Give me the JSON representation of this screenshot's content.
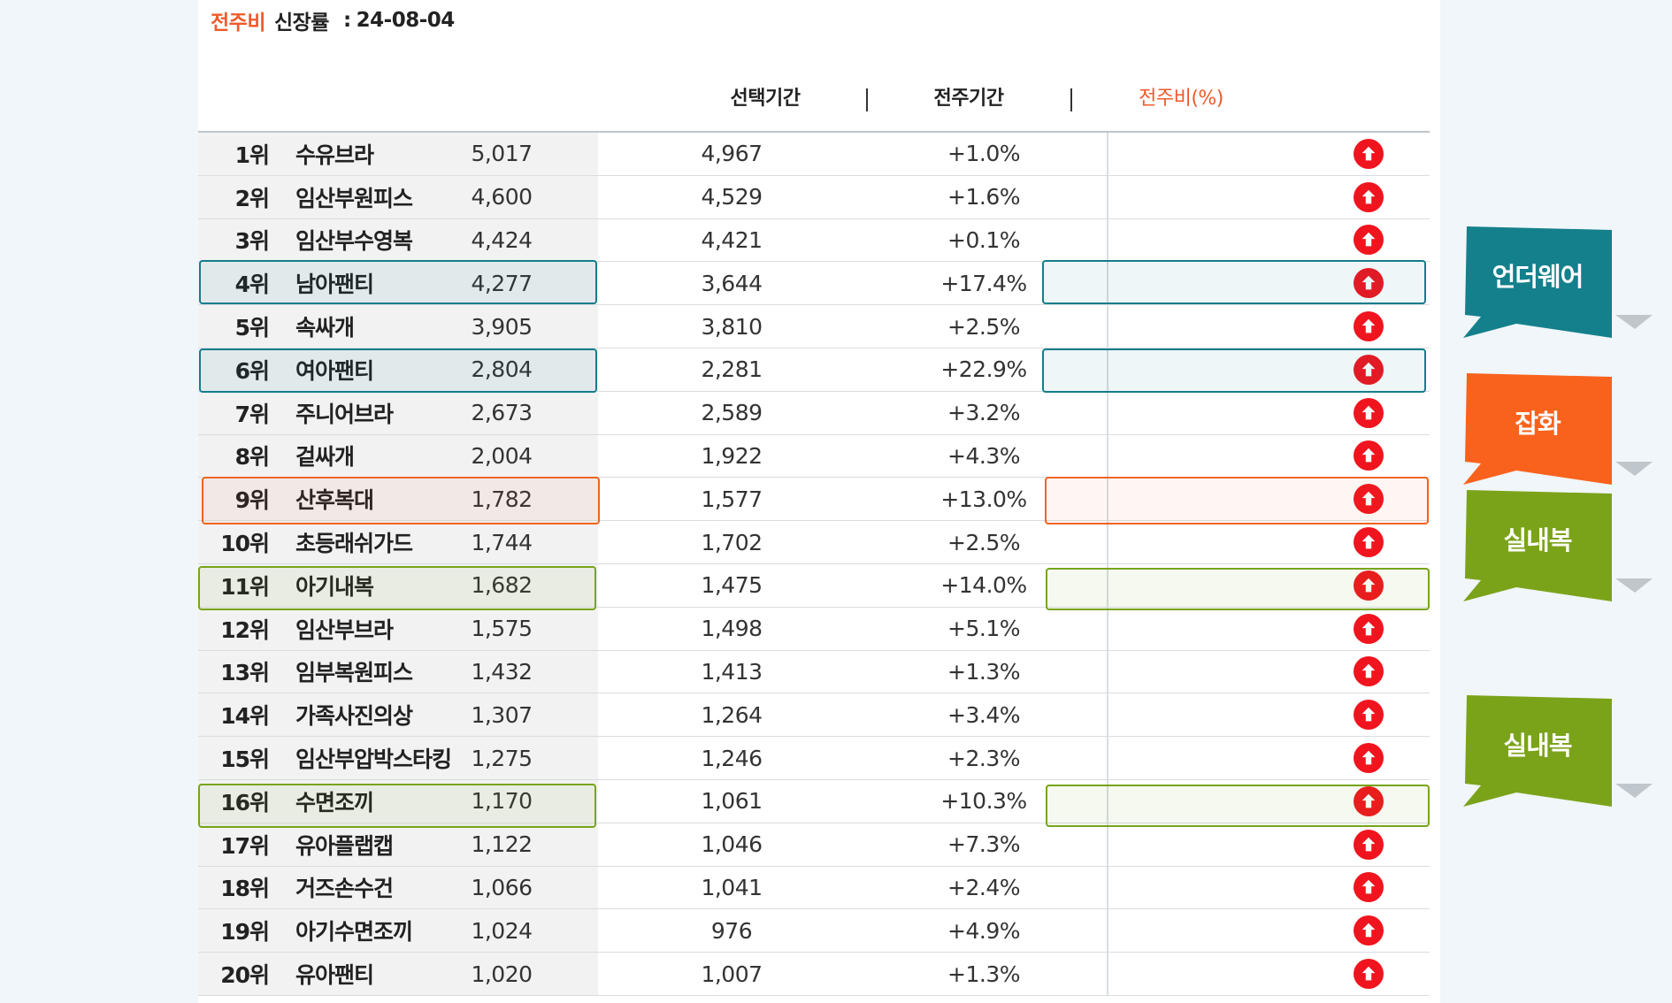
{
  "heading": {
    "accent": "전주비",
    "label": "신장률",
    "date": "24-08-04"
  },
  "columns": {
    "selected": "선택기간",
    "previous": "전주기간",
    "ratio": "전주비(%)"
  },
  "rows": [
    {
      "rank": "1위",
      "name": "수유브라",
      "selected": "5,017",
      "previous": "4,967",
      "ratio": "+1.0%"
    },
    {
      "rank": "2위",
      "name": "임산부원피스",
      "selected": "4,600",
      "previous": "4,529",
      "ratio": "+1.6%"
    },
    {
      "rank": "3위",
      "name": "임산부수영복",
      "selected": "4,424",
      "previous": "4,421",
      "ratio": "+0.1%"
    },
    {
      "rank": "4위",
      "name": "남아팬티",
      "selected": "4,277",
      "previous": "3,644",
      "ratio": "+17.4%"
    },
    {
      "rank": "5위",
      "name": "속싸개",
      "selected": "3,905",
      "previous": "3,810",
      "ratio": "+2.5%"
    },
    {
      "rank": "6위",
      "name": "여아팬티",
      "selected": "2,804",
      "previous": "2,281",
      "ratio": "+22.9%"
    },
    {
      "rank": "7위",
      "name": "주니어브라",
      "selected": "2,673",
      "previous": "2,589",
      "ratio": "+3.2%"
    },
    {
      "rank": "8위",
      "name": "겉싸개",
      "selected": "2,004",
      "previous": "1,922",
      "ratio": "+4.3%"
    },
    {
      "rank": "9위",
      "name": "산후복대",
      "selected": "1,782",
      "previous": "1,577",
      "ratio": "+13.0%"
    },
    {
      "rank": "10위",
      "name": "초등래쉬가드",
      "selected": "1,744",
      "previous": "1,702",
      "ratio": "+2.5%"
    },
    {
      "rank": "11위",
      "name": "아기내복",
      "selected": "1,682",
      "previous": "1,475",
      "ratio": "+14.0%"
    },
    {
      "rank": "12위",
      "name": "임산부브라",
      "selected": "1,575",
      "previous": "1,498",
      "ratio": "+5.1%"
    },
    {
      "rank": "13위",
      "name": "임부복원피스",
      "selected": "1,432",
      "previous": "1,413",
      "ratio": "+1.3%"
    },
    {
      "rank": "14위",
      "name": "가족사진의상",
      "selected": "1,307",
      "previous": "1,264",
      "ratio": "+3.4%"
    },
    {
      "rank": "15위",
      "name": "임산부압박스타킹",
      "selected": "1,275",
      "previous": "1,246",
      "ratio": "+2.3%"
    },
    {
      "rank": "16위",
      "name": "수면조끼",
      "selected": "1,170",
      "previous": "1,061",
      "ratio": "+10.3%"
    },
    {
      "rank": "17위",
      "name": "유아플랩캡",
      "selected": "1,122",
      "previous": "1,046",
      "ratio": "+7.3%"
    },
    {
      "rank": "18위",
      "name": "거즈손수건",
      "selected": "1,066",
      "previous": "1,041",
      "ratio": "+2.4%"
    },
    {
      "rank": "19위",
      "name": "아기수면조끼",
      "selected": "1,024",
      "previous": "976",
      "ratio": "+4.9%"
    },
    {
      "rank": "20위",
      "name": "유아팬티",
      "selected": "1,020",
      "previous": "1,007",
      "ratio": "+1.3%"
    }
  ],
  "callouts": [
    {
      "label": "언더웨어",
      "color": "#14808c"
    },
    {
      "label": "잡화",
      "color": "#f9621c"
    },
    {
      "label": "실내복",
      "color": "#7ba31a"
    },
    {
      "label": "실내복",
      "color": "#7ba31a"
    }
  ],
  "icons": {
    "trend": "arrow-up-circle-icon"
  },
  "colors": {
    "accent": "#f05a2a",
    "up": "#f0141e"
  }
}
